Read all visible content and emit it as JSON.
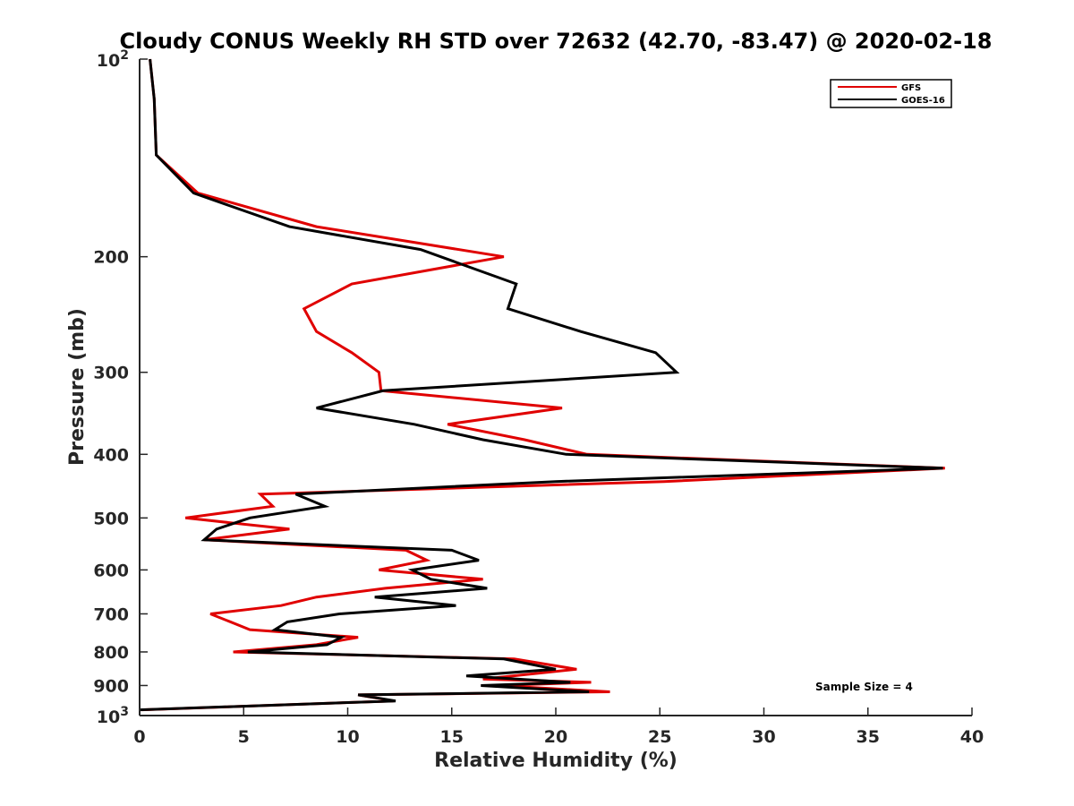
{
  "chart_data": {
    "type": "line",
    "title": "Cloudy CONUS Weekly RH STD over 72632 (42.70, -83.47) @ 2020-02-18",
    "xlabel": "Relative Humidity (%)",
    "ylabel": "Pressure (mb)",
    "xlim": [
      0,
      40
    ],
    "ylim": [
      100,
      1000
    ],
    "y_scale": "log",
    "y_reversed": true,
    "grid": false,
    "legend_position": "top-right",
    "x_ticks": [
      "0",
      "5",
      "10",
      "15",
      "20",
      "25",
      "30",
      "35",
      "40"
    ],
    "y_ticks": [
      "200",
      "300",
      "400",
      "500",
      "600",
      "700",
      "800",
      "900"
    ],
    "y_tick_values": [
      200,
      300,
      400,
      500,
      600,
      700,
      800,
      900
    ],
    "y_exp_ticks": [
      {
        "value": 100,
        "base": "10",
        "exp": "2"
      },
      {
        "value": 1000,
        "base": "10",
        "exp": "3"
      }
    ],
    "annotation": "Sample Size = 4",
    "series": [
      {
        "name": "GFS",
        "color": "#e00000",
        "points": [
          {
            "x": 0.5,
            "p": 100
          },
          {
            "x": 0.7,
            "p": 115
          },
          {
            "x": 0.8,
            "p": 140
          },
          {
            "x": 2.8,
            "p": 160
          },
          {
            "x": 8.5,
            "p": 180
          },
          {
            "x": 17.5,
            "p": 200
          },
          {
            "x": 10.2,
            "p": 220
          },
          {
            "x": 7.9,
            "p": 240
          },
          {
            "x": 8.5,
            "p": 260
          },
          {
            "x": 10.2,
            "p": 280
          },
          {
            "x": 11.5,
            "p": 300
          },
          {
            "x": 11.6,
            "p": 320
          },
          {
            "x": 20.3,
            "p": 340
          },
          {
            "x": 14.8,
            "p": 360
          },
          {
            "x": 18.5,
            "p": 380
          },
          {
            "x": 21.5,
            "p": 400
          },
          {
            "x": 38.7,
            "p": 420
          },
          {
            "x": 25.2,
            "p": 440
          },
          {
            "x": 5.8,
            "p": 460
          },
          {
            "x": 6.4,
            "p": 480
          },
          {
            "x": 2.2,
            "p": 500
          },
          {
            "x": 7.2,
            "p": 520
          },
          {
            "x": 3.1,
            "p": 540
          },
          {
            "x": 12.8,
            "p": 560
          },
          {
            "x": 13.8,
            "p": 580
          },
          {
            "x": 11.5,
            "p": 600
          },
          {
            "x": 16.5,
            "p": 620
          },
          {
            "x": 11.8,
            "p": 640
          },
          {
            "x": 8.5,
            "p": 660
          },
          {
            "x": 6.8,
            "p": 680
          },
          {
            "x": 3.4,
            "p": 700
          },
          {
            "x": 5.3,
            "p": 740
          },
          {
            "x": 10.5,
            "p": 760
          },
          {
            "x": 8.5,
            "p": 780
          },
          {
            "x": 4.5,
            "p": 800
          },
          {
            "x": 18.0,
            "p": 820
          },
          {
            "x": 21.0,
            "p": 850
          },
          {
            "x": 16.5,
            "p": 880
          },
          {
            "x": 21.7,
            "p": 890
          },
          {
            "x": 17.2,
            "p": 900
          },
          {
            "x": 22.6,
            "p": 920
          },
          {
            "x": 10.5,
            "p": 930
          },
          {
            "x": 12.2,
            "p": 950
          },
          {
            "x": 0.1,
            "p": 980
          }
        ]
      },
      {
        "name": "GOES-16",
        "color": "#000000",
        "points": [
          {
            "x": 0.5,
            "p": 100
          },
          {
            "x": 0.7,
            "p": 115
          },
          {
            "x": 0.8,
            "p": 140
          },
          {
            "x": 2.6,
            "p": 160
          },
          {
            "x": 7.2,
            "p": 180
          },
          {
            "x": 13.5,
            "p": 195
          },
          {
            "x": 18.1,
            "p": 220
          },
          {
            "x": 17.7,
            "p": 240
          },
          {
            "x": 21.2,
            "p": 260
          },
          {
            "x": 24.8,
            "p": 280
          },
          {
            "x": 25.8,
            "p": 300
          },
          {
            "x": 11.7,
            "p": 320
          },
          {
            "x": 8.5,
            "p": 340
          },
          {
            "x": 13.2,
            "p": 360
          },
          {
            "x": 16.5,
            "p": 380
          },
          {
            "x": 20.5,
            "p": 400
          },
          {
            "x": 38.6,
            "p": 420
          },
          {
            "x": 20.0,
            "p": 440
          },
          {
            "x": 7.5,
            "p": 460
          },
          {
            "x": 8.9,
            "p": 480
          },
          {
            "x": 5.3,
            "p": 500
          },
          {
            "x": 3.7,
            "p": 520
          },
          {
            "x": 3.1,
            "p": 540
          },
          {
            "x": 15.0,
            "p": 560
          },
          {
            "x": 16.3,
            "p": 580
          },
          {
            "x": 13.1,
            "p": 600
          },
          {
            "x": 14.0,
            "p": 620
          },
          {
            "x": 16.7,
            "p": 640
          },
          {
            "x": 11.3,
            "p": 660
          },
          {
            "x": 15.2,
            "p": 680
          },
          {
            "x": 9.6,
            "p": 700
          },
          {
            "x": 7.1,
            "p": 720
          },
          {
            "x": 6.5,
            "p": 740
          },
          {
            "x": 9.7,
            "p": 760
          },
          {
            "x": 9.0,
            "p": 780
          },
          {
            "x": 5.2,
            "p": 800
          },
          {
            "x": 17.5,
            "p": 820
          },
          {
            "x": 20.0,
            "p": 850
          },
          {
            "x": 15.7,
            "p": 870
          },
          {
            "x": 20.7,
            "p": 890
          },
          {
            "x": 16.4,
            "p": 900
          },
          {
            "x": 21.6,
            "p": 920
          },
          {
            "x": 10.5,
            "p": 930
          },
          {
            "x": 12.3,
            "p": 950
          },
          {
            "x": 0.0,
            "p": 980
          }
        ]
      }
    ]
  }
}
